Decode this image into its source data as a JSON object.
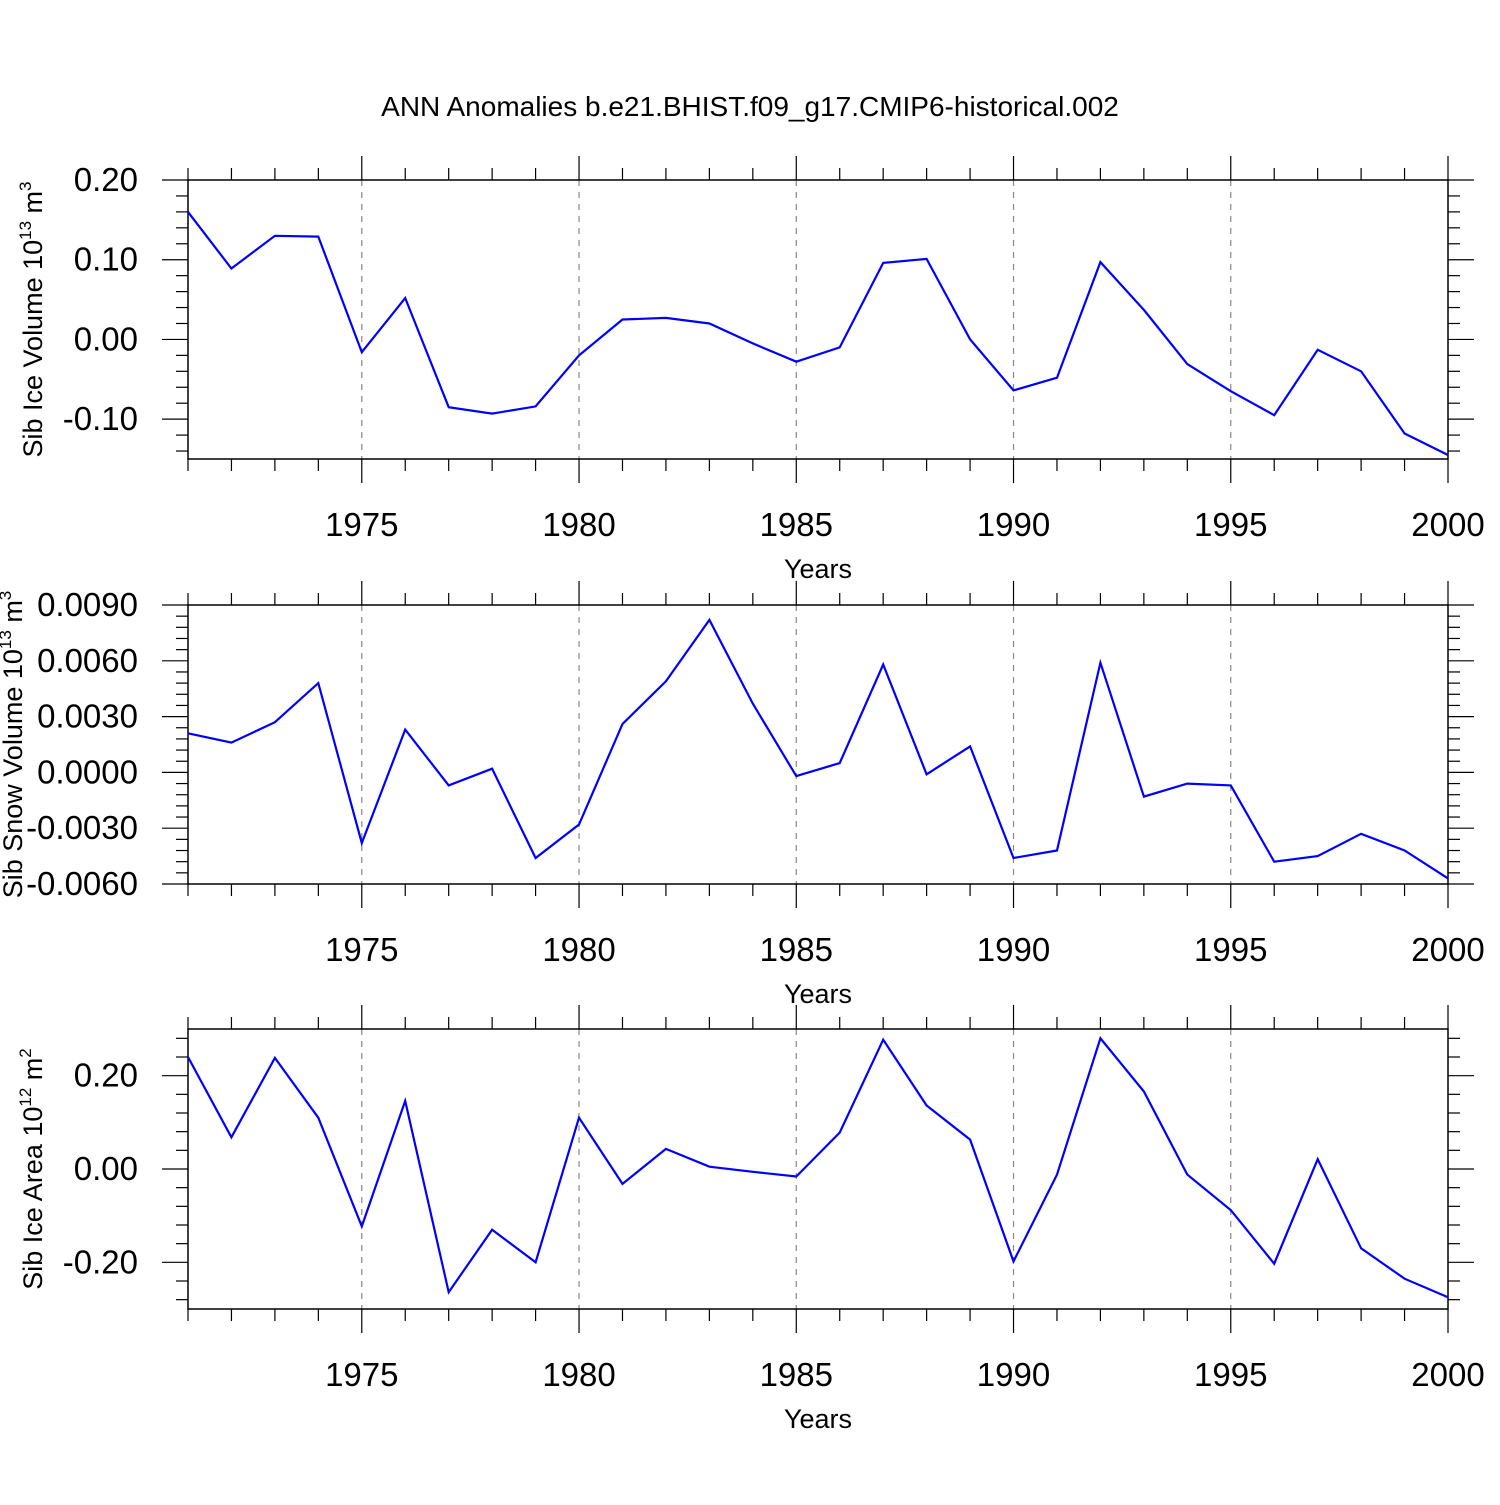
{
  "title": "ANN Anomalies b.e21.BHIST.f09_g17.CMIP6-historical.002",
  "colors": {
    "line": "#0000ff",
    "axis": "#000000",
    "grid": "#888888"
  },
  "chart_data": [
    {
      "type": "line",
      "title": "ANN Anomalies b.e21.BHIST.f09_g17.CMIP6-historical.002",
      "xlabel": "Years",
      "ylabel": {
        "text": "Sib Ice Volume 10",
        "exponent": "13",
        "unit": " m",
        "unit_exponent": "3"
      },
      "xlim": [
        1971,
        2000
      ],
      "ylim": [
        -0.15,
        0.2
      ],
      "x_ticks": [
        1975,
        1980,
        1985,
        1990,
        1995,
        2000
      ],
      "y_ticks": [
        -0.1,
        0.0,
        0.1,
        0.2
      ],
      "y_tick_labels": [
        "-0.10",
        "0.00",
        "0.10",
        "0.20"
      ],
      "grid": "vertical dashed at major x ticks",
      "series": [
        {
          "x": [
            1971,
            1972,
            1973,
            1974,
            1975,
            1976,
            1977,
            1978,
            1979,
            1980,
            1981,
            1982,
            1983,
            1984,
            1985,
            1986,
            1987,
            1988,
            1989,
            1990,
            1991,
            1992,
            1993,
            1994,
            1995,
            1996,
            1997,
            1998,
            1999,
            2000
          ],
          "values": [
            0.16,
            0.089,
            0.13,
            0.129,
            -0.016,
            0.052,
            -0.085,
            -0.093,
            -0.084,
            -0.02,
            0.025,
            0.027,
            0.02,
            -0.005,
            -0.028,
            -0.01,
            0.096,
            0.101,
            0.0,
            -0.064,
            -0.048,
            0.097,
            0.037,
            -0.031,
            -0.065,
            -0.095,
            -0.013,
            -0.04,
            -0.118,
            -0.145
          ]
        }
      ]
    },
    {
      "type": "line",
      "xlabel": "Years",
      "ylabel": {
        "text": "Sib Snow Volume 10",
        "exponent": "13",
        "unit": " m",
        "unit_exponent": "3"
      },
      "xlim": [
        1971,
        2000
      ],
      "ylim": [
        -0.006,
        0.009
      ],
      "x_ticks": [
        1975,
        1980,
        1985,
        1990,
        1995,
        2000
      ],
      "y_ticks": [
        -0.006,
        -0.003,
        0.0,
        0.003,
        0.006,
        0.009
      ],
      "y_tick_labels": [
        "-0.0060",
        "-0.0030",
        "0.0000",
        "0.0030",
        "0.0060",
        "0.0090"
      ],
      "grid": "vertical dashed at major x ticks",
      "series": [
        {
          "x": [
            1971,
            1972,
            1973,
            1974,
            1975,
            1976,
            1977,
            1978,
            1979,
            1980,
            1981,
            1982,
            1983,
            1984,
            1985,
            1986,
            1987,
            1988,
            1989,
            1990,
            1991,
            1992,
            1993,
            1994,
            1995,
            1996,
            1997,
            1998,
            1999,
            2000
          ],
          "values": [
            0.0021,
            0.0016,
            0.0027,
            0.0048,
            -0.0038,
            0.0023,
            -0.0007,
            0.0002,
            -0.0046,
            -0.0028,
            0.0026,
            0.0049,
            0.0082,
            0.0037,
            -0.0002,
            0.0005,
            0.0058,
            -0.0001,
            0.0014,
            -0.0046,
            -0.0042,
            0.0059,
            -0.0013,
            -0.0006,
            -0.0007,
            -0.0048,
            -0.0045,
            -0.0033,
            -0.0042,
            -0.0057
          ]
        }
      ]
    },
    {
      "type": "line",
      "xlabel": "Years",
      "ylabel": {
        "text": "Sib Ice Area 10",
        "exponent": "12",
        "unit": " m",
        "unit_exponent": "2"
      },
      "xlim": [
        1971,
        2000
      ],
      "ylim": [
        -0.3,
        0.3
      ],
      "x_ticks": [
        1975,
        1980,
        1985,
        1990,
        1995,
        2000
      ],
      "y_ticks": [
        -0.2,
        0.0,
        0.2
      ],
      "y_tick_labels": [
        "-0.20",
        "0.00",
        "0.20"
      ],
      "grid": "vertical dashed at major x ticks",
      "series": [
        {
          "x": [
            1971,
            1972,
            1973,
            1974,
            1975,
            1976,
            1977,
            1978,
            1979,
            1980,
            1981,
            1982,
            1983,
            1984,
            1985,
            1986,
            1987,
            1988,
            1989,
            1990,
            1991,
            1992,
            1993,
            1994,
            1995,
            1996,
            1997,
            1998,
            1999,
            2000
          ],
          "values": [
            0.24,
            0.068,
            0.238,
            0.11,
            -0.123,
            0.146,
            -0.264,
            -0.13,
            -0.2,
            0.11,
            -0.032,
            0.043,
            0.005,
            -0.006,
            -0.016,
            0.078,
            0.277,
            0.136,
            0.063,
            -0.198,
            -0.012,
            0.28,
            0.166,
            -0.012,
            -0.088,
            -0.203,
            0.021,
            -0.17,
            -0.235,
            -0.275
          ]
        }
      ]
    }
  ]
}
